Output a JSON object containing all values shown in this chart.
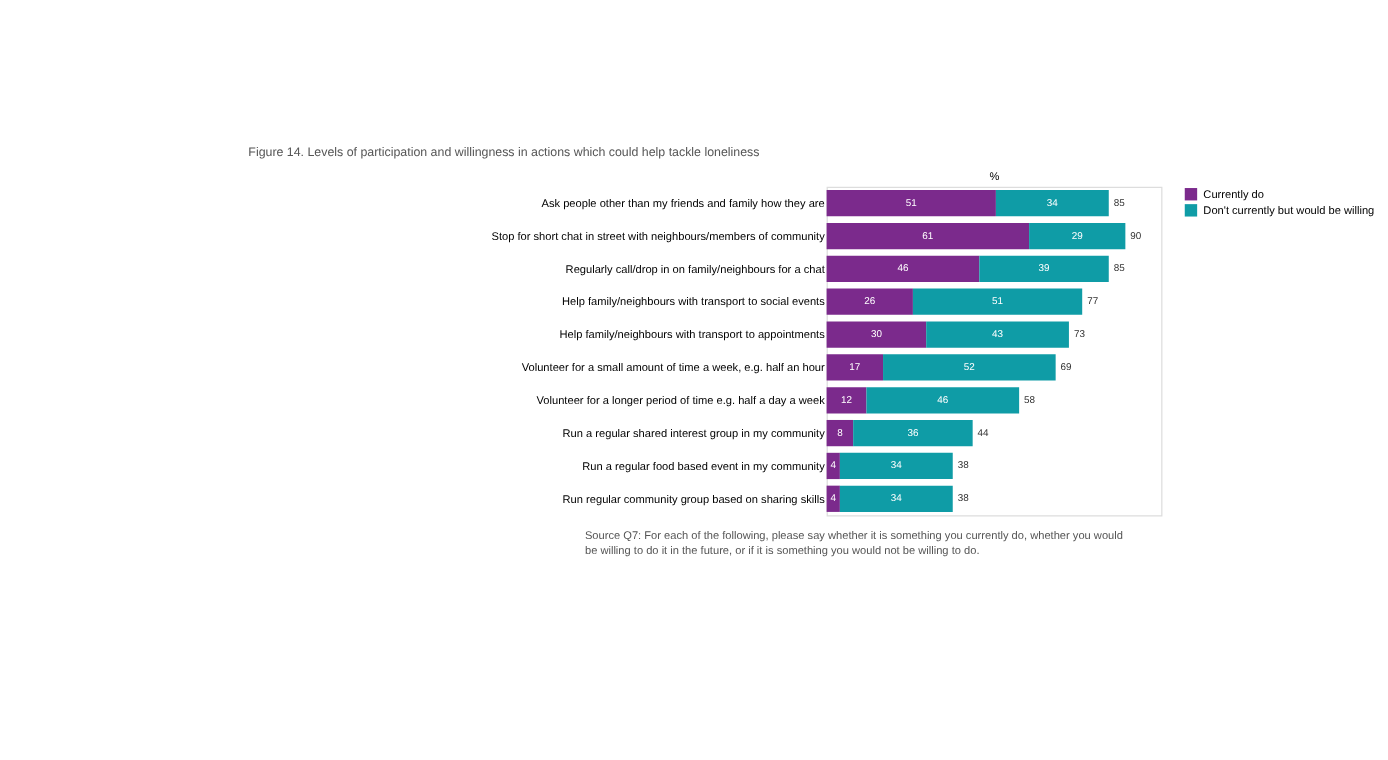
{
  "chart_data": {
    "type": "bar",
    "orientation": "horizontal",
    "stacked": true,
    "data_labels": true,
    "legend": "right",
    "title": "Figure 14. Levels of participation and willingness in actions which could help tackle loneliness",
    "xlabel": "%",
    "categories": [
      "Ask people other than my friends and family how they are",
      "Stop for short chat in street with neighbours/members of community",
      "Regularly call/drop in on family/neighbours for a chat",
      "Help family/neighbours with transport to social events",
      "Help family/neighbours with transport to appointments",
      "Volunteer for a small amount of time a week, e.g. half an hour",
      "Volunteer for a longer period of time e.g. half a day a week",
      "Run a regular shared interest group in my community",
      "Run a regular food based event in my community",
      "Run regular community group based on sharing skills"
    ],
    "series": [
      {
        "name": "Currently do",
        "color": "#7b2a8c",
        "values": [
          51,
          61,
          46,
          26,
          30,
          17,
          12,
          8,
          4,
          4
        ]
      },
      {
        "name": "Don't currently but would be willing",
        "color": "#0f9ca6",
        "values": [
          34,
          29,
          39,
          51,
          43,
          52,
          46,
          36,
          34,
          34
        ]
      }
    ],
    "totals": [
      "85",
      "90",
      "85",
      "77",
      "73",
      "69",
      "58",
      "44",
      "38",
      "38"
    ],
    "annotations": [
      "Source Q7: For each of the following, please say whether it is something you currently do, whether you would be willing to do it in the future, or if it is something you would not be willing to do."
    ]
  }
}
